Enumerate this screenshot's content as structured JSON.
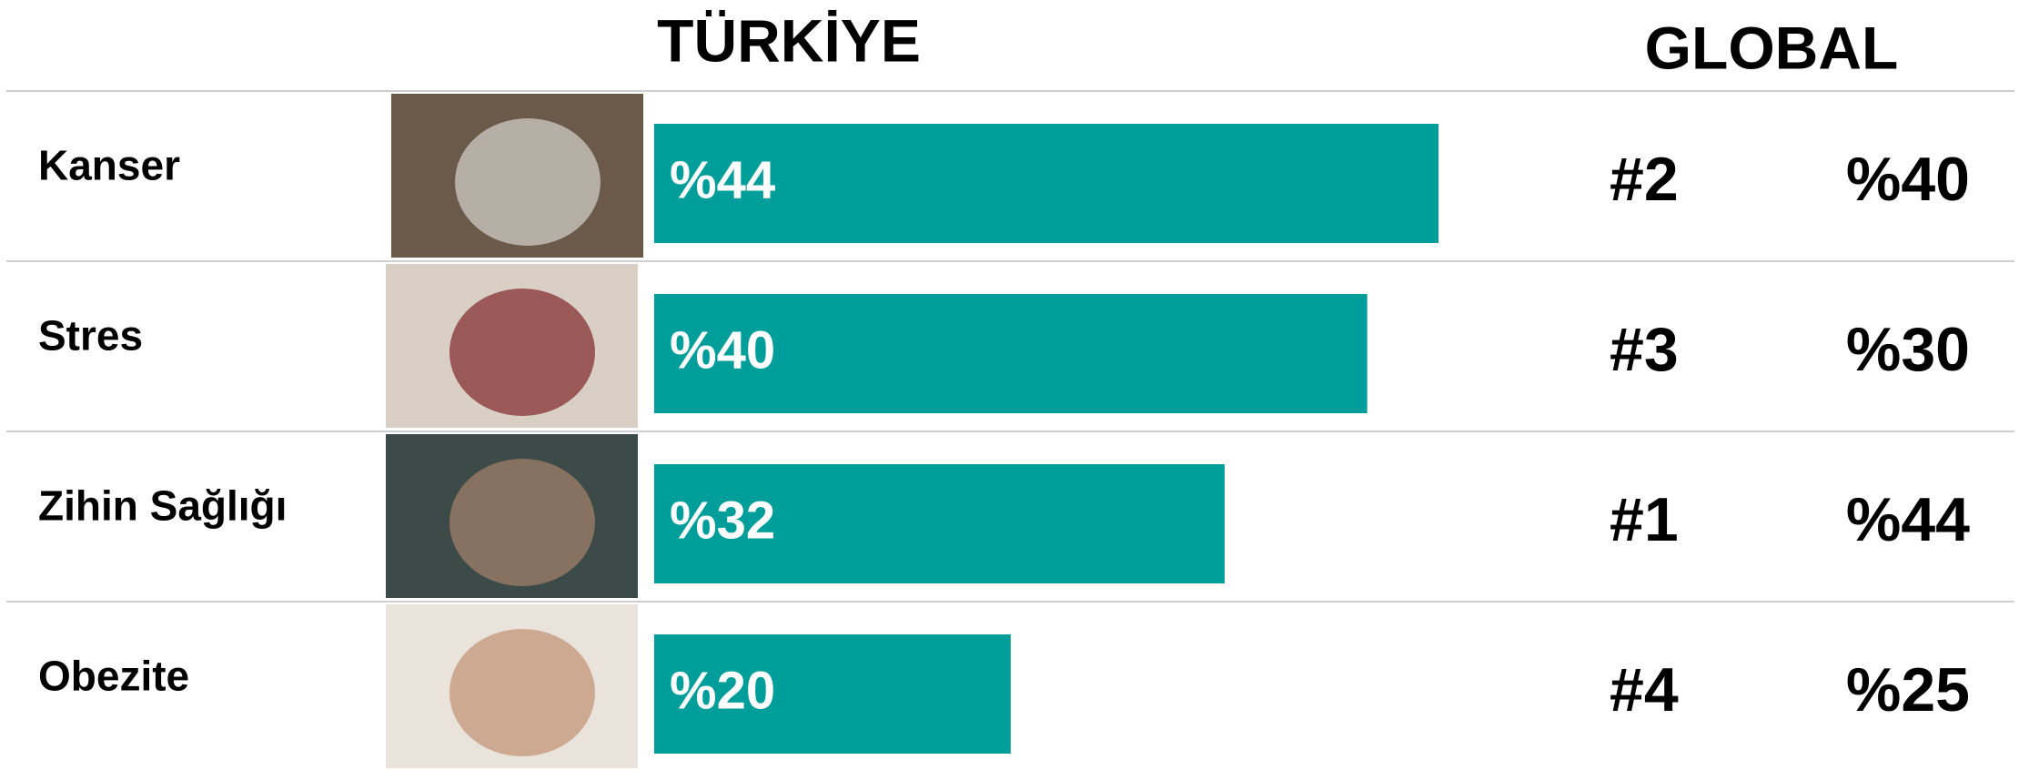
{
  "chart_data": {
    "type": "bar",
    "orientation": "horizontal",
    "title": "TÜRKİYE",
    "global_title": "GLOBAL",
    "categories": [
      "Kanser",
      "Stres",
      "Zihin Sağlığı",
      "Obezite"
    ],
    "values": [
      44,
      40,
      32,
      20
    ],
    "value_labels": [
      "%44",
      "%40",
      "%32",
      "%20"
    ],
    "color": "#009e9a",
    "global_ranks": [
      "#2",
      "#3",
      "#1",
      "#4"
    ],
    "global_values": [
      40,
      30,
      44,
      25
    ],
    "global_value_labels": [
      "%40",
      "%30",
      "%44",
      "%25"
    ]
  }
}
